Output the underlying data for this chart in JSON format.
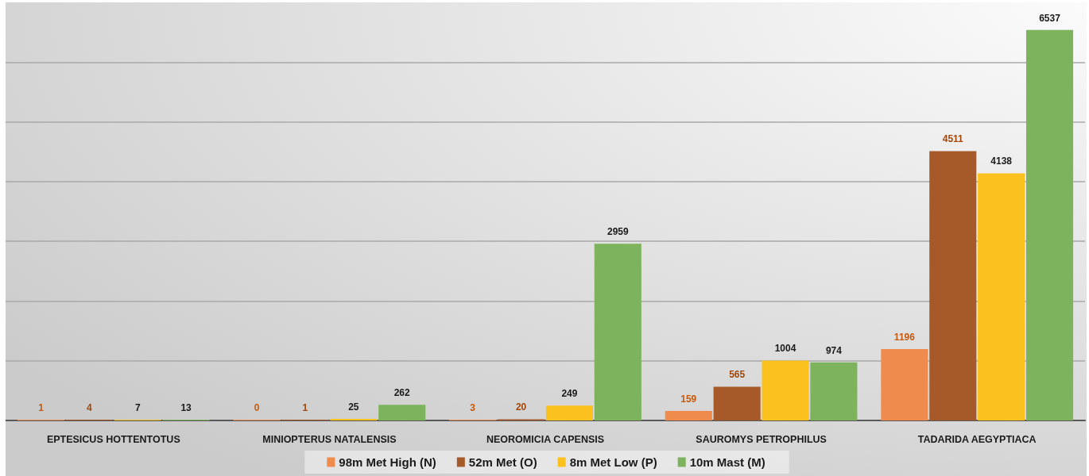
{
  "chart_data": {
    "type": "bar",
    "categories": [
      "EPTESICUS HOTTENTOTUS",
      "MINIOPTERUS NATALENSIS",
      "NEOROMICIA CAPENSIS",
      "SAUROMYS PETROPHILUS",
      "TADARIDA AEGYPTIACA"
    ],
    "series": [
      {
        "name": "98m Met High (N)",
        "color": "#ef8b4c",
        "values": [
          1,
          0,
          3,
          159,
          1196
        ]
      },
      {
        "name": "52m Met (O)",
        "color": "#a65a2a",
        "values": [
          4,
          1,
          20,
          565,
          4511
        ]
      },
      {
        "name": "8m Met Low (P)",
        "color": "#fbc21f",
        "values": [
          7,
          25,
          249,
          1004,
          4138
        ]
      },
      {
        "name": "10m Mast (M)",
        "color": "#7eb35d",
        "values": [
          13,
          262,
          2959,
          974,
          6537
        ]
      }
    ],
    "ylim": [
      0,
      7000
    ],
    "yticks": [
      {
        "value": 1000,
        "label": null
      },
      {
        "value": 2000,
        "label": null
      },
      {
        "value": 3000,
        "label": null
      },
      {
        "value": 4000,
        "label": null
      },
      {
        "value": 5000,
        "label": null
      },
      {
        "value": 6000,
        "label": null
      }
    ],
    "tick_labels": "x",
    "grid": "y",
    "legend": "bottom",
    "data_labels": true
  }
}
